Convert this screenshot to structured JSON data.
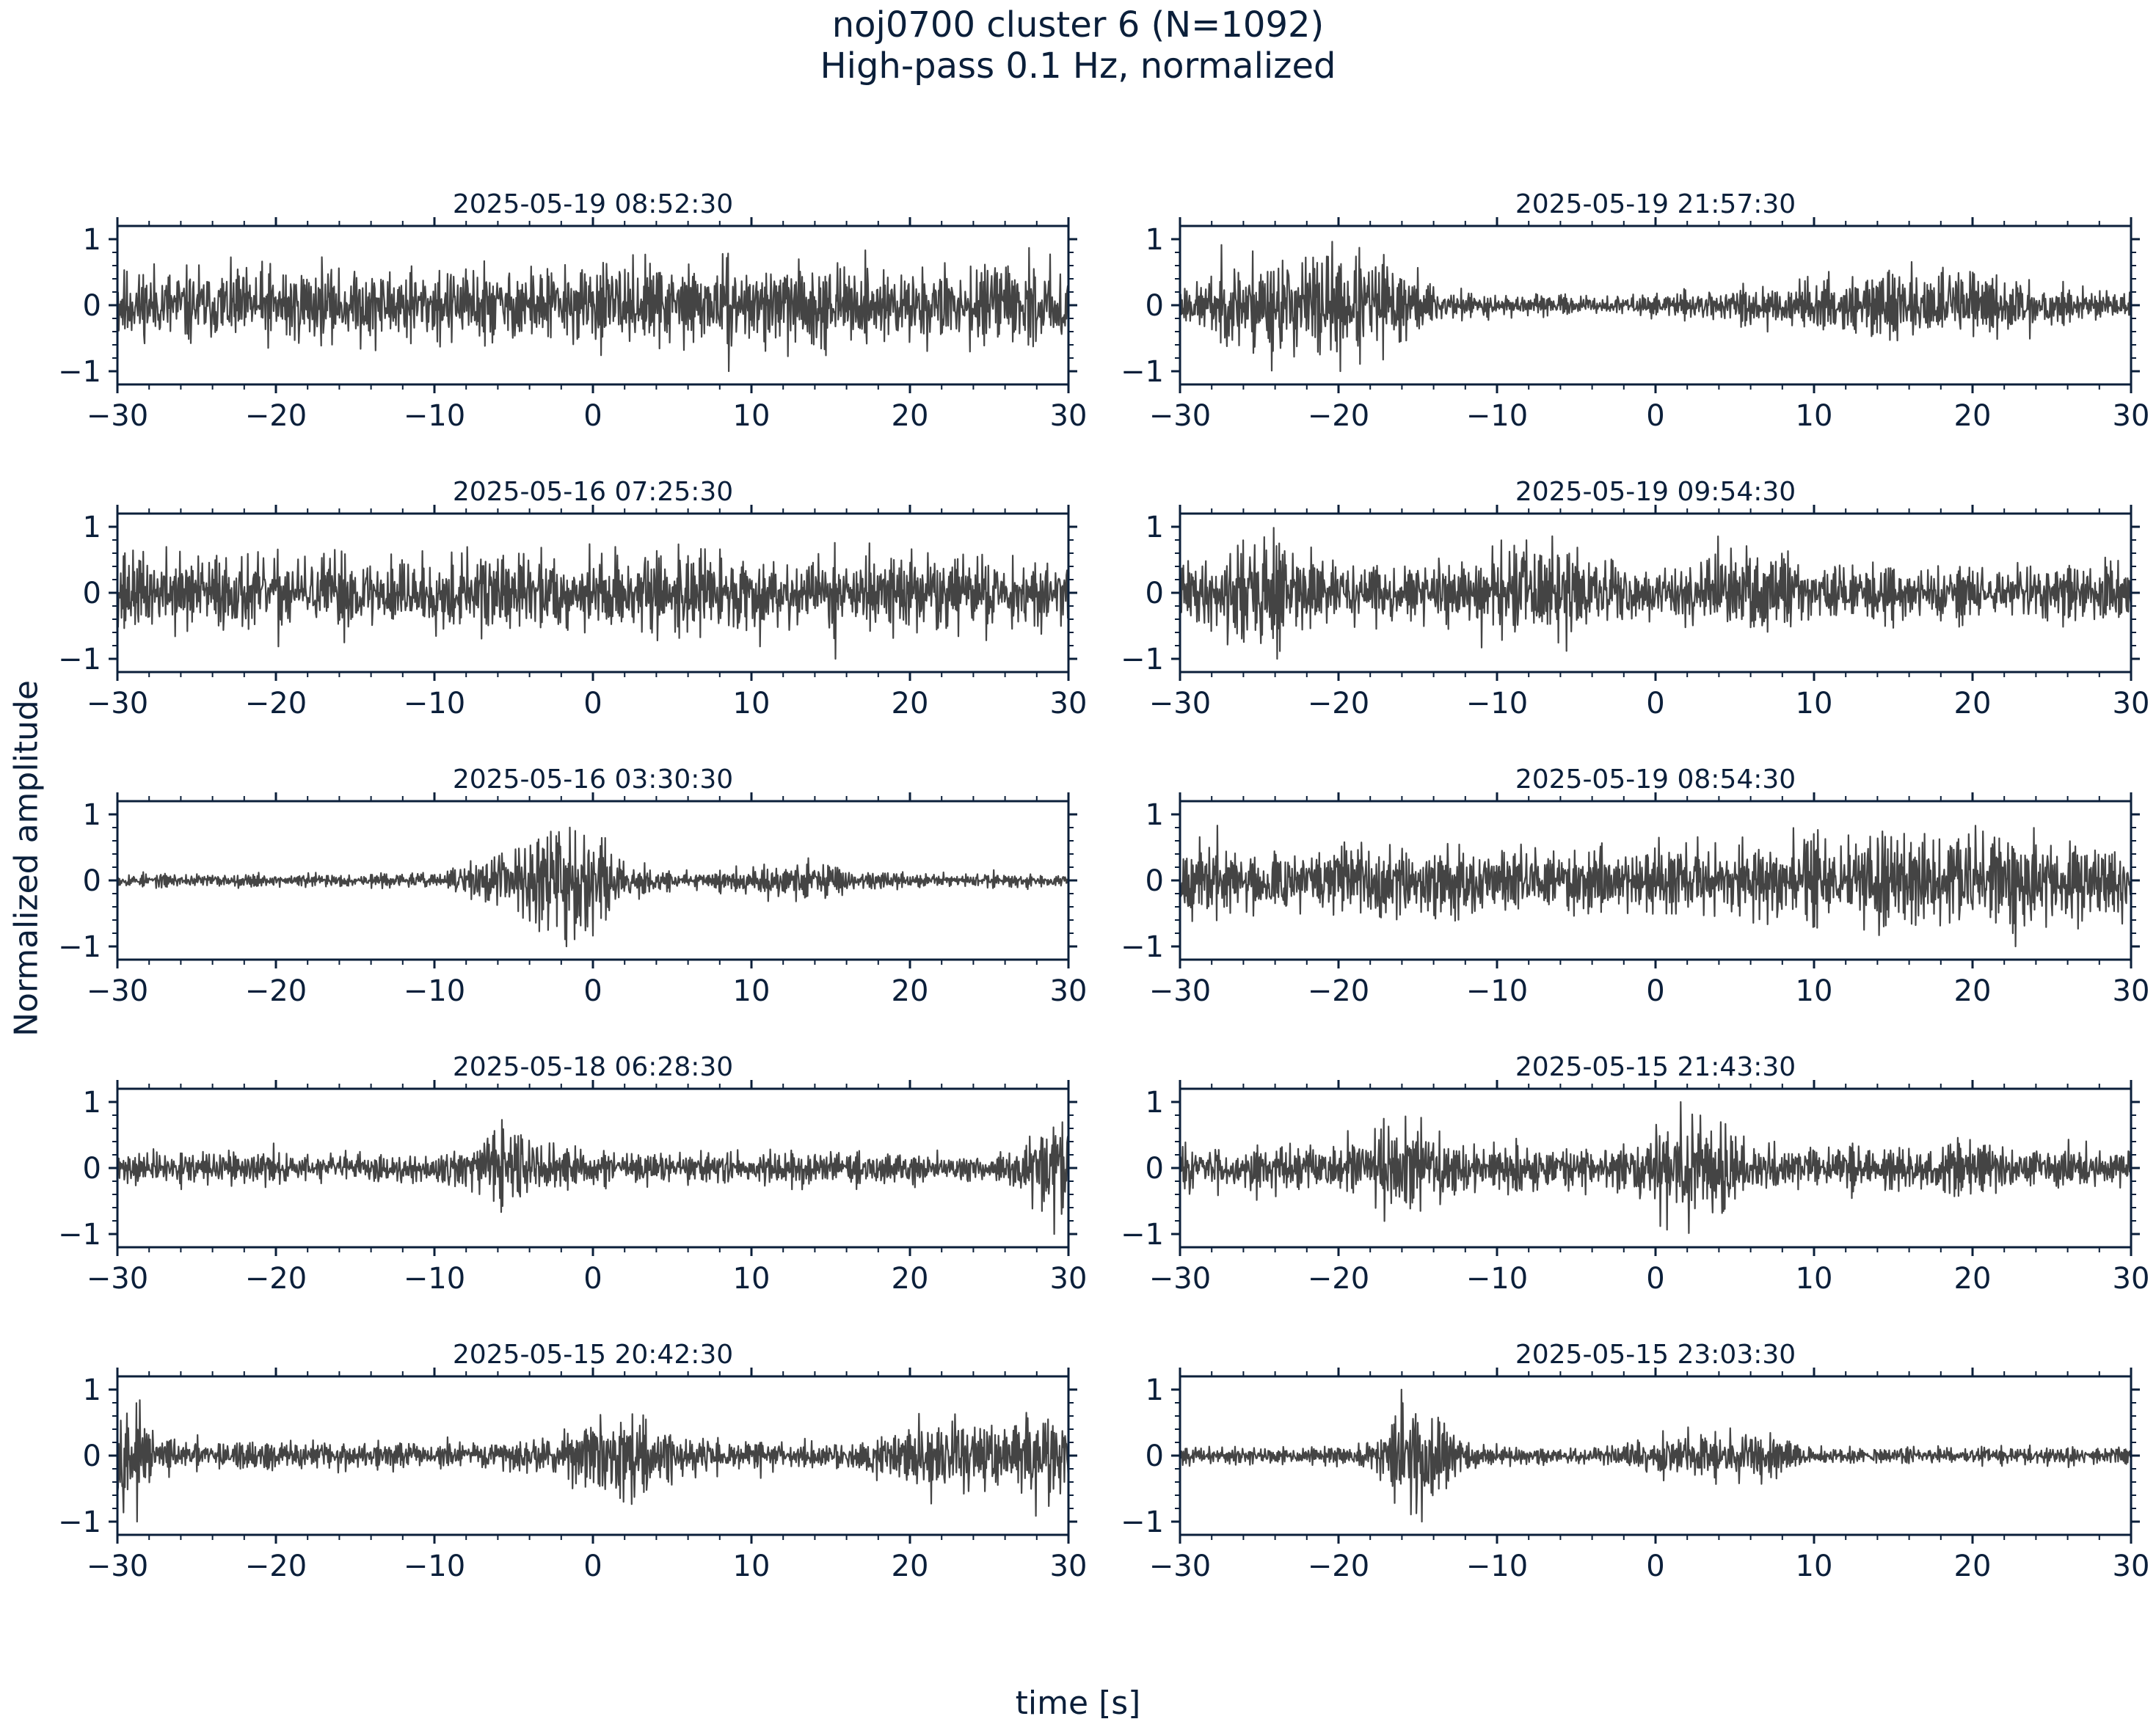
{
  "figure": {
    "title_line1": "noj0700 cluster 6 (N=1092)",
    "title_line2": "High-pass 0.1 Hz, normalized",
    "ylabel": "Normalized amplitude",
    "xlabel": "time [s]"
  },
  "colors": {
    "trace": "#444444",
    "axes": "#0b1f3a",
    "background": "#ffffff"
  },
  "chart_data": {
    "type": "line",
    "layout": "5 rows x 2 columns of waveform panels",
    "xlim": [
      -30,
      30
    ],
    "ylim": [
      -1.2,
      1.2
    ],
    "xticks": [
      -30,
      -20,
      -10,
      0,
      10,
      20,
      30
    ],
    "xtick_labels": [
      "−30",
      "−20",
      "−10",
      "0",
      "10",
      "20",
      "30"
    ],
    "yticks": [
      -1,
      0,
      1
    ],
    "ytick_labels": [
      "−1",
      "0",
      "1"
    ],
    "panels": [
      {
        "title": "2025-05-19 08:52:30",
        "bursts": [],
        "base": 0.45,
        "seed": 11
      },
      {
        "title": "2025-05-19 21:57:30",
        "bursts": [
          [
            -20,
            4,
            0.9
          ],
          [
            -26,
            2.5,
            0.45
          ],
          [
            19,
            5,
            0.5
          ],
          [
            8,
            4,
            0.25
          ]
        ],
        "base": 0.18,
        "seed": 23
      },
      {
        "title": "2025-05-16 07:25:30",
        "bursts": [],
        "base": 0.4,
        "seed": 37
      },
      {
        "title": "2025-05-19 09:54:30",
        "bursts": [
          [
            -25,
            2,
            0.35
          ],
          [
            -8,
            2.5,
            0.25
          ],
          [
            6,
            2,
            0.2
          ]
        ],
        "base": 0.28,
        "seed": 41
      },
      {
        "title": "2025-05-16 03:30:30",
        "bursts": [
          [
            -1.5,
            2.5,
            0.85
          ],
          [
            -5,
            2.5,
            0.35
          ],
          [
            13,
            3,
            0.25
          ]
        ],
        "base": 0.12,
        "seed": 53
      },
      {
        "title": "2025-05-19 08:54:30",
        "bursts": [
          [
            20,
            8,
            0.2
          ]
        ],
        "base": 0.35,
        "seed": 67
      },
      {
        "title": "2025-05-18 06:28:30",
        "bursts": [
          [
            -5,
            2,
            0.3
          ],
          [
            29.5,
            1.5,
            0.45
          ]
        ],
        "base": 0.2,
        "seed": 71
      },
      {
        "title": "2025-05-15 21:43:30",
        "bursts": [
          [
            2.5,
            2,
            0.6
          ],
          [
            -16,
            2,
            0.3
          ]
        ],
        "base": 0.3,
        "seed": 83
      },
      {
        "title": "2025-05-15 20:42:30",
        "bursts": [
          [
            -29.5,
            1,
            0.5
          ],
          [
            2,
            2.5,
            0.4
          ],
          [
            22,
            2.5,
            0.35
          ],
          [
            29,
            2,
            0.45
          ]
        ],
        "base": 0.2,
        "seed": 97
      },
      {
        "title": "2025-05-15 23:03:30",
        "bursts": [
          [
            -15,
            1.5,
            0.75
          ],
          [
            1,
            2,
            0.2
          ],
          [
            6,
            2,
            0.2
          ]
        ],
        "base": 0.12,
        "seed": 101
      }
    ]
  }
}
